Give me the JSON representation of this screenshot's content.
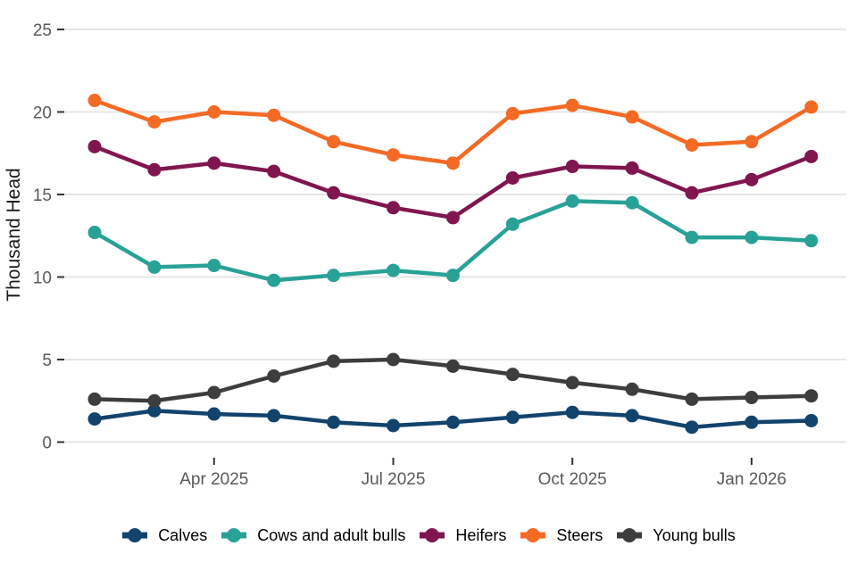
{
  "chart_data": {
    "type": "line",
    "title": "",
    "xlabel": "",
    "ylabel": "Thousand Head",
    "ylim": [
      0,
      25
    ],
    "yticks": [
      0,
      5,
      10,
      15,
      20,
      25
    ],
    "grid": "horizontal",
    "legend_position": "bottom",
    "x": [
      "Feb 2025",
      "Mar 2025",
      "Apr 2025",
      "May 2025",
      "Jun 2025",
      "Jul 2025",
      "Aug 2025",
      "Sep 2025",
      "Oct 2025",
      "Nov 2025",
      "Dec 2025",
      "Jan 2026",
      "Feb 2026"
    ],
    "x_ticks": [
      {
        "label": "Apr 2025",
        "index": 2
      },
      {
        "label": "Jul 2025",
        "index": 5
      },
      {
        "label": "Oct 2025",
        "index": 8
      },
      {
        "label": "Jan 2026",
        "index": 11
      }
    ],
    "series": [
      {
        "name": "Calves",
        "color": "#12436D",
        "values": [
          1.4,
          1.9,
          1.7,
          1.6,
          1.2,
          1.0,
          1.2,
          1.5,
          1.8,
          1.6,
          0.9,
          1.2,
          1.3
        ]
      },
      {
        "name": "Cows and adult bulls",
        "color": "#28A197",
        "values": [
          12.7,
          10.6,
          10.7,
          9.8,
          10.1,
          10.4,
          10.1,
          13.2,
          14.6,
          14.5,
          12.4,
          12.4,
          12.2
        ]
      },
      {
        "name": "Heifers",
        "color": "#801650",
        "values": [
          17.9,
          16.5,
          16.9,
          16.4,
          15.1,
          14.2,
          13.6,
          16.0,
          16.7,
          16.6,
          15.1,
          15.9,
          17.3
        ]
      },
      {
        "name": "Steers",
        "color": "#F46A25",
        "values": [
          20.7,
          19.4,
          20.0,
          19.8,
          18.2,
          17.4,
          16.9,
          19.9,
          20.4,
          19.7,
          18.0,
          18.2,
          20.3
        ]
      },
      {
        "name": "Young bulls",
        "color": "#3D3D3D",
        "values": [
          2.6,
          2.5,
          3.0,
          4.0,
          4.9,
          5.0,
          4.6,
          4.1,
          3.6,
          3.2,
          2.6,
          2.7,
          2.8
        ]
      }
    ]
  },
  "style": {
    "background": "#FFFFFF",
    "gridline_color": "#E6E6E6",
    "tick_color": "#333333",
    "axis_text_color": "#595959",
    "axis_title_color": "#1A1A1A",
    "legend_text_color": "#000000"
  }
}
